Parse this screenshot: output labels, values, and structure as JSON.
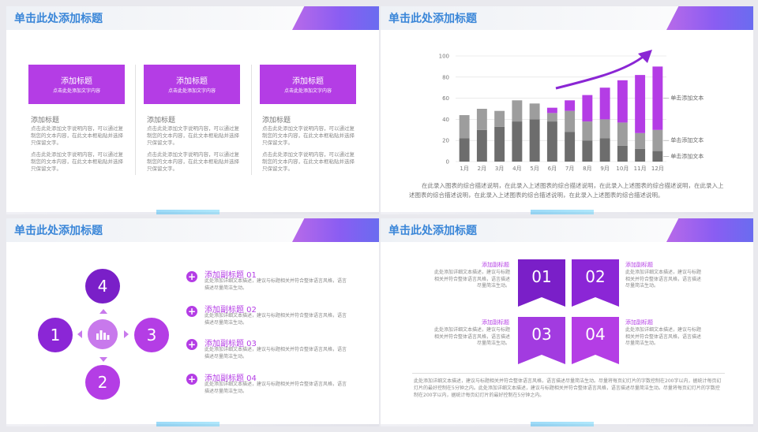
{
  "slides": [
    {
      "title": "单击此处添加标题",
      "cards": [
        {
          "title": "添加标题",
          "subtitle": "点击此处添加文字内容",
          "head": "添加标题",
          "para1": "点击此处添加文字说明内容，可以通过复制您的文本内容，在此文本框粘贴并选择只保留文字。",
          "para2": "点击此处添加文字说明内容，可以通过复制您的文本内容，在此文本框粘贴并选择只保留文字。"
        },
        {
          "title": "添加标题",
          "subtitle": "点击此处添加文字内容",
          "head": "添加标题",
          "para1": "点击此处添加文字说明内容，可以通过复制您的文本内容，在此文本框粘贴并选择只保留文字。",
          "para2": "点击此处添加文字说明内容，可以通过复制您的文本内容，在此文本框粘贴并选择只保留文字。"
        },
        {
          "title": "添加标题",
          "subtitle": "点击此处添加文字内容",
          "head": "添加标题",
          "para1": "点击此处添加文字说明内容，可以通过复制您的文本内容，在此文本框粘贴并选择只保留文字。",
          "para2": "点击此处添加文字说明内容，可以通过复制您的文本内容，在此文本框粘贴并选择只保留文字。"
        }
      ]
    },
    {
      "title": "单击此处添加标题",
      "caption": "在此录入图表的综合描述说明，在此录入上述图表的综合描述说明，在此录入上述图表的综合描述说明，在此录入上述图表的综合描述说明，在此录入上述图表的综合描述说明，在此录入上述图表的综合描述说明。"
    },
    {
      "title": "单击此处添加标题",
      "circles": [
        "1",
        "2",
        "3",
        "4"
      ],
      "items": [
        {
          "icon": "+",
          "title": "添加副标题 01",
          "desc": "此处添加详细文本描述，建议与标题相关并符合整体语言风格，语言描述尽量简洁生动。"
        },
        {
          "icon": "+",
          "title": "添加副标题 02",
          "desc": "此处添加详细文本描述，建议与标题相关并符合整体语言风格，语言描述尽量简洁生动。"
        },
        {
          "icon": "+",
          "title": "添加副标题 03",
          "desc": "此处添加详细文本描述，建议与标题相关并符合整体语言风格，语言描述尽量简洁生动。"
        },
        {
          "icon": "+",
          "title": "添加副标题 04",
          "desc": "此处添加详细文本描述，建议与标题相关并符合整体语言风格，语言描述尽量简洁生动。"
        }
      ]
    },
    {
      "title": "单击此处添加标题",
      "ribbons": [
        "01",
        "02",
        "03",
        "04"
      ],
      "quads": [
        {
          "title": "添加副标题",
          "desc": "此处添加详细文本描述，建议与标题相关并符合整体语言风格，语言描述尽量简洁生动。"
        },
        {
          "title": "添加副标题",
          "desc": "此处添加详细文本描述，建议与标题相关并符合整体语言风格，语言描述尽量简洁生动。"
        },
        {
          "title": "添加副标题",
          "desc": "此处添加详细文本描述，建议与标题相关并符合整体语言风格，语言描述尽量简洁生动。"
        },
        {
          "title": "添加副标题",
          "desc": "此处添加详细文本描述，建议与标题相关并符合整体语言风格，语言描述尽量简洁生动。"
        }
      ],
      "bottom": "此处添加详细文本描述，建议与标题相关并符合整体语言风格，语言描述尽量简洁生动。尽量将每页幻灯片的字数控制在200字以内，据统计每页幻灯片的最好控制在5分钟之内。此处添加详细文本描述，建议与标题相关并符合整体语言风格，语言描述尽量简洁生动。尽量将每页幻灯片的字数控制在200字以内，据统计每页幻灯片的最好控制在5分钟之内。"
    }
  ],
  "chart_data": {
    "type": "bar",
    "categories": [
      "1月",
      "2月",
      "3月",
      "4月",
      "5月",
      "6月",
      "7月",
      "8月",
      "9月",
      "10月",
      "11月",
      "12月"
    ],
    "series": [
      {
        "name": "",
        "values": [
          22,
          30,
          33,
          38,
          40,
          38,
          28,
          20,
          22,
          15,
          12,
          10
        ]
      },
      {
        "name": "",
        "values": [
          22,
          20,
          15,
          20,
          15,
          8,
          20,
          18,
          18,
          22,
          15,
          20
        ]
      },
      {
        "name": "",
        "values": [
          0,
          0,
          0,
          0,
          0,
          5,
          10,
          25,
          30,
          40,
          55,
          60
        ]
      }
    ],
    "yticks": [
      "0",
      "20",
      "40",
      "60",
      "80",
      "100"
    ],
    "ylim": [
      0,
      100
    ],
    "legend_labels": [
      "单击添加文本",
      "单击添加文本",
      "单击添加文本"
    ],
    "colors": [
      "#6d6d6d",
      "#9d9d9d",
      "#b43de5"
    ],
    "grid": true
  }
}
